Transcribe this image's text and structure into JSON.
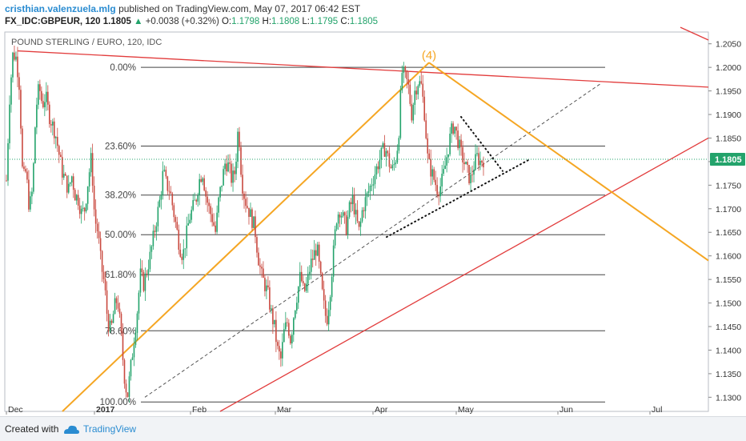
{
  "header": {
    "author": "cristhian.valenzuela.mlg",
    "published": "published on TradingView.com, May 07, 2017 06:42 EST",
    "symbol": "FX_IDC:GBPEUR, 120",
    "last": "1.1805",
    "change": "+0.0038 (+0.32%)",
    "o_label": "O:",
    "o_val": "1.1798",
    "h_label": "H:",
    "h_val": "1.1808",
    "l_label": "L:",
    "l_val": "1.1795",
    "c_label": "C:",
    "c_val": "1.1805"
  },
  "footer": {
    "created": "Created with",
    "brand": "TradingView"
  },
  "colors": {
    "up": "#23a36b",
    "down": "#c9493f",
    "orange": "#f5a623",
    "red": "#e23c3c",
    "fib": "#444444",
    "badge": "#23a36b"
  },
  "chart_data": {
    "type": "candlestick",
    "title": "POUND STERLING / EURO, 120, IDC",
    "ylim": [
      1.127,
      1.2075
    ],
    "y_ticks": [
      "1.2050",
      "1.2000",
      "1.1950",
      "1.1900",
      "1.1850",
      "1.1800",
      "1.1750",
      "1.1700",
      "1.1650",
      "1.1600",
      "1.1550",
      "1.1500",
      "1.1450",
      "1.1400",
      "1.1350",
      "1.1300"
    ],
    "x_ticks": [
      "Dec",
      "2017",
      "Feb",
      "Mar",
      "Apr",
      "May",
      "Jun",
      "Jul"
    ],
    "last_price": "1.1805",
    "wave_label": "(4)",
    "fib_levels": [
      {
        "label": "0.00%",
        "price": 1.2
      },
      {
        "label": "23.60%",
        "price": 1.1833
      },
      {
        "label": "38.20%",
        "price": 1.1729
      },
      {
        "label": "50.00%",
        "price": 1.1645
      },
      {
        "label": "61.80%",
        "price": 1.156
      },
      {
        "label": "78.60%",
        "price": 1.1441
      },
      {
        "label": "100.00%",
        "price": 1.129
      }
    ],
    "series": [
      {
        "price_path": [
          [
            1.176,
            1.194
          ],
          [
            1.203,
            1.202
          ],
          [
            1.196,
            1.176
          ],
          [
            1.178,
            1.17
          ],
          [
            1.174,
            1.191
          ],
          [
            1.196,
            1.192
          ],
          [
            1.194,
            1.19
          ],
          [
            1.188,
            1.186
          ],
          [
            1.182,
            1.178
          ],
          [
            1.176,
            1.174
          ],
          [
            1.177,
            1.173
          ],
          [
            1.172,
            1.169
          ],
          [
            1.17,
            1.176
          ],
          [
            1.181,
            1.168
          ],
          [
            1.165,
            1.158
          ],
          [
            1.154,
            1.146
          ],
          [
            1.144,
            1.149
          ],
          [
            1.151,
            1.144
          ],
          [
            1.135,
            1.13
          ],
          [
            1.136,
            1.142
          ],
          [
            1.148,
            1.156
          ],
          [
            1.154,
            1.157
          ],
          [
            1.16,
            1.164
          ],
          [
            1.168,
            1.172
          ],
          [
            1.178,
            1.175
          ],
          [
            1.174,
            1.17
          ],
          [
            1.166,
            1.162
          ],
          [
            1.16,
            1.164
          ],
          [
            1.168,
            1.17
          ],
          [
            1.172,
            1.176
          ],
          [
            1.178,
            1.173
          ],
          [
            1.17,
            1.168
          ],
          [
            1.165,
            1.172
          ],
          [
            1.176,
            1.18
          ],
          [
            1.179,
            1.176
          ],
          [
            1.178,
            1.188
          ],
          [
            1.176,
            1.172
          ],
          [
            1.17,
            1.168
          ],
          [
            1.166,
            1.16
          ],
          [
            1.156,
            1.154
          ],
          [
            1.152,
            1.148
          ],
          [
            1.145,
            1.14
          ],
          [
            1.138,
            1.144
          ],
          [
            1.146,
            1.142
          ],
          [
            1.148,
            1.152
          ],
          [
            1.156,
            1.152
          ],
          [
            1.154,
            1.158
          ],
          [
            1.16,
            1.162
          ],
          [
            1.156,
            1.15
          ],
          [
            1.146,
            1.152
          ],
          [
            1.16,
            1.168
          ],
          [
            1.17,
            1.168
          ],
          [
            1.166,
            1.17
          ],
          [
            1.172,
            1.168
          ],
          [
            1.165,
            1.17
          ],
          [
            1.172,
            1.174
          ],
          [
            1.176,
            1.178
          ],
          [
            1.18,
            1.182
          ],
          [
            1.183,
            1.18
          ],
          [
            1.178,
            1.18
          ],
          [
            1.185,
            1.199
          ],
          [
            1.198,
            1.196
          ],
          [
            1.19,
            1.195
          ],
          [
            1.197,
            1.196
          ],
          [
            1.19,
            1.18
          ],
          [
            1.178,
            1.176
          ],
          [
            1.174,
            1.175
          ],
          [
            1.178,
            1.182
          ],
          [
            1.186,
            1.188
          ],
          [
            1.185,
            1.182
          ],
          [
            1.18,
            1.178
          ],
          [
            1.176,
            1.179
          ],
          [
            1.181,
            1.18
          ],
          [
            1.1805
          ]
        ]
      }
    ],
    "lines": {
      "orange_up": [
        [
          1.1,
          1.201
        ]
      ],
      "orange_down": [
        [
          1.201,
          1.159
        ]
      ],
      "red_upper": [
        [
          1.2035,
          1.196
        ]
      ],
      "red_lower": [
        [
          1.105,
          1.185
        ]
      ]
    }
  }
}
